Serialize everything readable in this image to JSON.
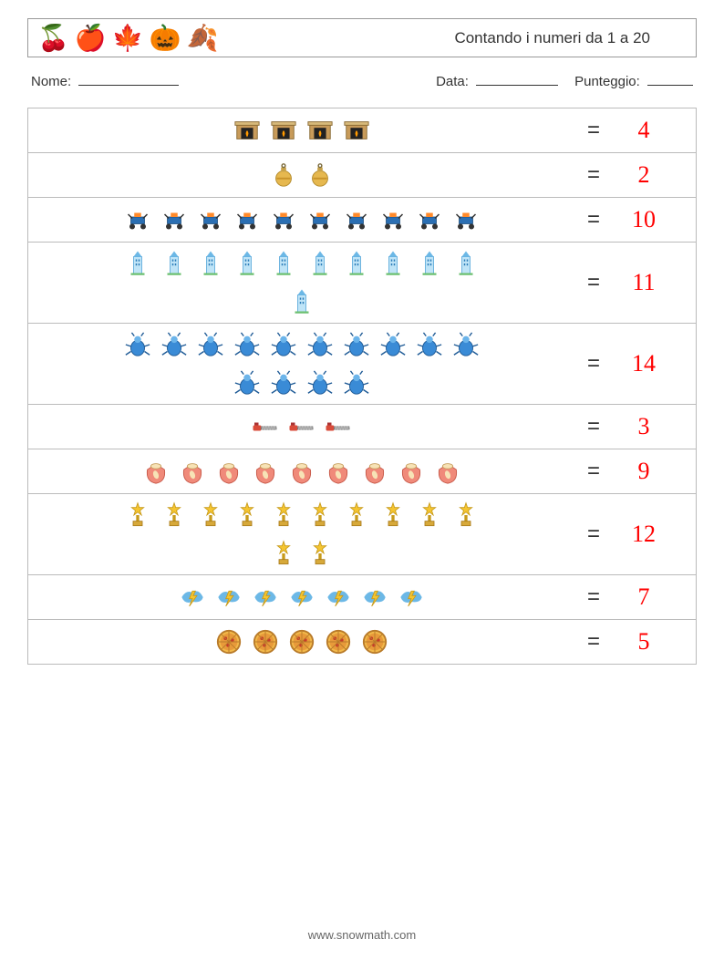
{
  "header": {
    "icons": [
      "cherry",
      "apple",
      "maple",
      "pumpkin",
      "leaf"
    ],
    "title": "Contando i numeri da 1 a 20"
  },
  "info": {
    "name_label": "Nome:",
    "name_blank_width": 110,
    "date_label": "Data:",
    "date_blank_width": 90,
    "score_label": "Punteggio:",
    "score_blank_width": 50
  },
  "colors": {
    "answer": "#ff0000",
    "border": "#bbbbbb",
    "text": "#333333"
  },
  "rows": [
    {
      "icon": "fireplace",
      "count": 4,
      "answer": 4,
      "per_row": 10
    },
    {
      "icon": "ornament",
      "count": 2,
      "answer": 2,
      "per_row": 10
    },
    {
      "icon": "rover",
      "count": 10,
      "answer": 10,
      "per_row": 10
    },
    {
      "icon": "building",
      "count": 11,
      "answer": 11,
      "per_row": 10
    },
    {
      "icon": "bug",
      "count": 14,
      "answer": 14,
      "per_row": 10
    },
    {
      "icon": "chainsaw",
      "count": 3,
      "answer": 3,
      "per_row": 10
    },
    {
      "icon": "sack",
      "count": 9,
      "answer": 9,
      "per_row": 10
    },
    {
      "icon": "trophy",
      "count": 12,
      "answer": 12,
      "per_row": 10
    },
    {
      "icon": "lightning",
      "count": 7,
      "answer": 7,
      "per_row": 10
    },
    {
      "icon": "pizza",
      "count": 5,
      "answer": 5,
      "per_row": 10
    }
  ],
  "equals_symbol": "=",
  "footer": "www.snowmath.com"
}
